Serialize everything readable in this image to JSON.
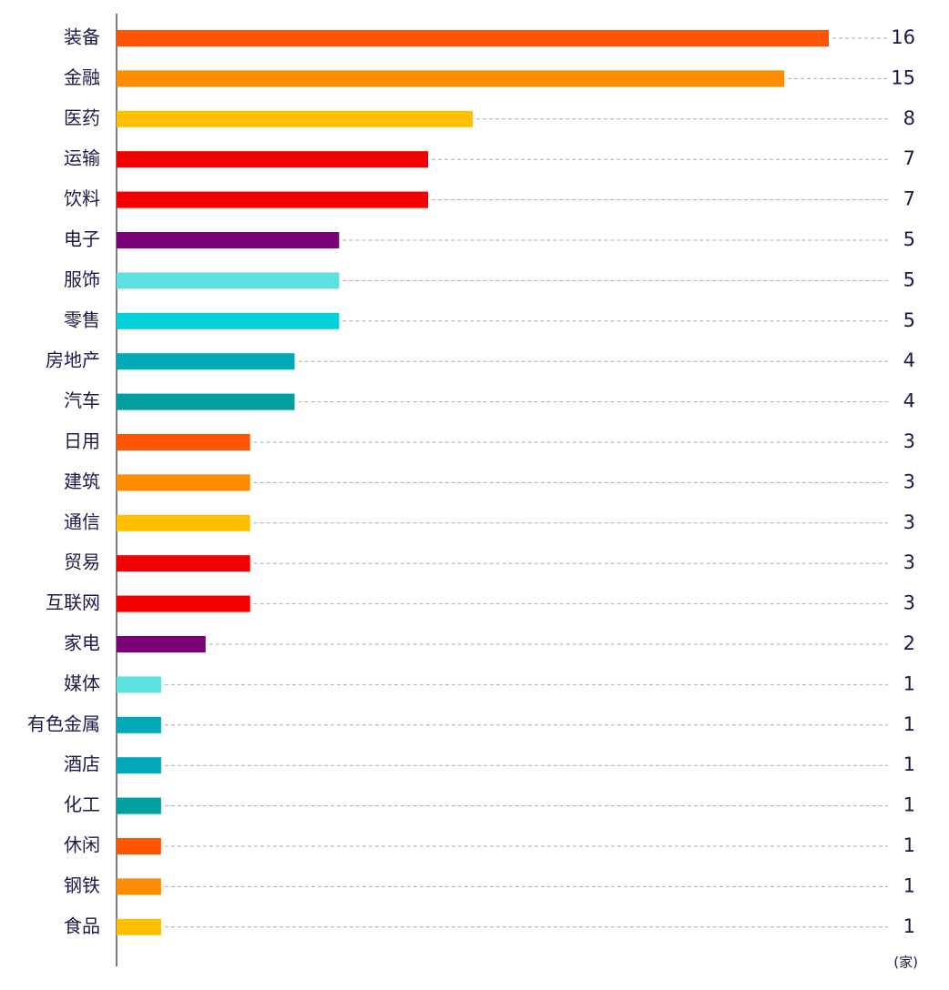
{
  "chart_data": {
    "type": "bar",
    "orientation": "horizontal",
    "categories": [
      "装备",
      "金融",
      "医药",
      "运输",
      "饮料",
      "电子",
      "服饰",
      "零售",
      "房地产",
      "汽车",
      "日用",
      "建筑",
      "通信",
      "贸易",
      "互联网",
      "家电",
      "媒体",
      "有色金属",
      "酒店",
      "化工",
      "休闲",
      "钢铁",
      "食品"
    ],
    "values": [
      16,
      15,
      8,
      7,
      7,
      5,
      5,
      5,
      4,
      4,
      3,
      3,
      3,
      3,
      3,
      2,
      1,
      1,
      1,
      1,
      1,
      1,
      1
    ],
    "colors": [
      "#ff5500",
      "#ff8c00",
      "#ffbf00",
      "#f20000",
      "#f20000",
      "#7a0078",
      "#5ce0e0",
      "#00d0d8",
      "#00a8b8",
      "#00a0a0",
      "#ff5500",
      "#ff8c00",
      "#ffbf00",
      "#f20000",
      "#f20000",
      "#7a0078",
      "#5ce0e0",
      "#00a8b8",
      "#00a8b8",
      "#00a0a0",
      "#ff5500",
      "#ff8c00",
      "#ffbf00"
    ],
    "xlim": [
      0,
      16
    ],
    "unit": "(家)"
  }
}
